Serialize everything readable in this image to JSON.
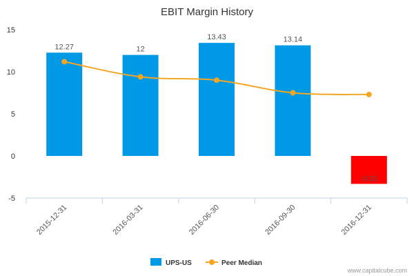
{
  "chart_data": {
    "type": "bar",
    "title": "EBIT Margin History",
    "categories": [
      "2015-12-31",
      "2016-03-31",
      "2016-06-30",
      "2016-09-30",
      "2016-12-31"
    ],
    "series": [
      {
        "name": "UPS-US",
        "kind": "bar",
        "color": "#0099e6",
        "negative_color": "#ff0000",
        "values": [
          12.27,
          12,
          13.43,
          13.14,
          -3.32
        ],
        "labels": [
          "12.27",
          "12",
          "13.43",
          "13.14",
          "-3.32"
        ]
      },
      {
        "name": "Peer Median",
        "kind": "line",
        "color": "#f5a623",
        "values": [
          11.2,
          9.4,
          9.0,
          7.5,
          7.3
        ]
      }
    ],
    "ylim": [
      -5,
      15
    ],
    "yticks": [
      -5,
      0,
      5,
      10,
      15
    ],
    "xlabel": "",
    "ylabel": "",
    "legend_position": "bottom-center"
  },
  "credit": "www.capitalcube.com"
}
